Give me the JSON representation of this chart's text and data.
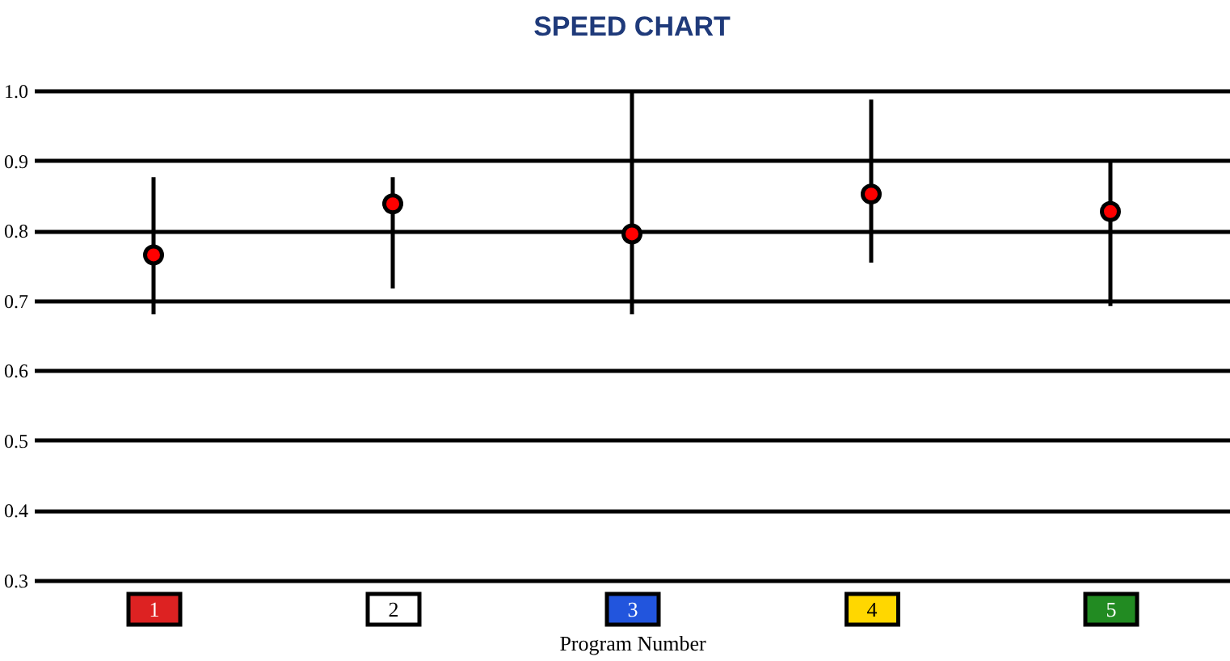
{
  "chart_data": {
    "type": "scatter",
    "title": "SPEED CHART",
    "xlabel": "Program Number",
    "categories": [
      "1",
      "2",
      "3",
      "4",
      "5"
    ],
    "series": [
      {
        "color": "#ff0000",
        "values": [
          0.765,
          0.838,
          0.795,
          0.852,
          0.827
        ],
        "errors": [
          [
            0.68,
            0.876
          ],
          [
            0.717,
            0.876
          ],
          [
            0.68,
            1.0
          ],
          [
            0.754,
            0.987
          ],
          [
            0.692,
            0.9
          ]
        ]
      }
    ],
    "ylim": [
      0.3,
      1.0
    ],
    "yticks": [
      {
        "value": 0.3,
        "label": "0.3"
      },
      {
        "value": 0.4,
        "label": "0.4"
      },
      {
        "value": 0.5,
        "label": "0.5"
      },
      {
        "value": 0.6,
        "label": "0.6"
      },
      {
        "value": 0.7,
        "label": "0.7"
      },
      {
        "value": 0.8,
        "label": "0.8"
      },
      {
        "value": 0.9,
        "label": "0.9"
      },
      {
        "value": 1.0,
        "label": "1.0"
      }
    ],
    "grid": "y",
    "marker": "circle",
    "legend": false
  }
}
